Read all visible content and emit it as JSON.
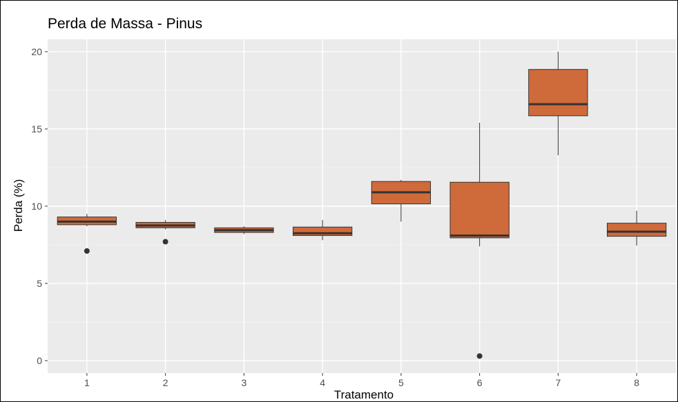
{
  "chart_data": {
    "type": "boxplot",
    "title": "Perda de Massa - Pinus",
    "xlabel": "Tratamento",
    "ylabel": "Perda (%)",
    "ylim": [
      -0.8,
      20.8
    ],
    "yticks": [
      0,
      5,
      10,
      15,
      20
    ],
    "grid": true,
    "categories": [
      "1",
      "2",
      "3",
      "4",
      "5",
      "6",
      "7",
      "8"
    ],
    "boxes": [
      {
        "category": "1",
        "whisker_low": 8.7,
        "q1": 8.8,
        "median": 9.0,
        "q3": 9.3,
        "whisker_high": 9.5,
        "outliers": [
          7.1
        ]
      },
      {
        "category": "2",
        "whisker_low": 8.5,
        "q1": 8.6,
        "median": 8.75,
        "q3": 8.95,
        "whisker_high": 9.1,
        "outliers": [
          7.7
        ]
      },
      {
        "category": "3",
        "whisker_low": 8.2,
        "q1": 8.3,
        "median": 8.45,
        "q3": 8.6,
        "whisker_high": 8.7,
        "outliers": []
      },
      {
        "category": "4",
        "whisker_low": 7.8,
        "q1": 8.1,
        "median": 8.25,
        "q3": 8.65,
        "whisker_high": 9.1,
        "outliers": []
      },
      {
        "category": "5",
        "whisker_low": 9.0,
        "q1": 10.15,
        "median": 10.9,
        "q3": 11.6,
        "whisker_high": 11.7,
        "outliers": []
      },
      {
        "category": "6",
        "whisker_low": 7.4,
        "q1": 7.95,
        "median": 8.1,
        "q3": 11.55,
        "whisker_high": 15.4,
        "outliers": [
          0.3
        ]
      },
      {
        "category": "7",
        "whisker_low": 13.3,
        "q1": 15.85,
        "median": 16.6,
        "q3": 18.85,
        "whisker_high": 20.0,
        "outliers": []
      },
      {
        "category": "8",
        "whisker_low": 7.45,
        "q1": 8.05,
        "median": 8.35,
        "q3": 8.9,
        "whisker_high": 9.7,
        "outliers": []
      }
    ],
    "colors": {
      "box_fill": "#cf6a3b",
      "box_line": "#333333",
      "panel_bg": "#ebebeb",
      "grid_major": "#ffffff",
      "grid_minor": "#f4f4f4",
      "outlier": "#333333"
    }
  }
}
